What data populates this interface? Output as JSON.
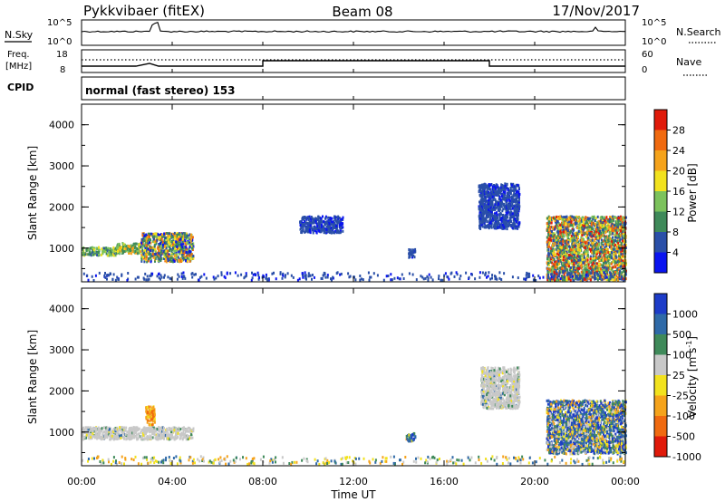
{
  "header": {
    "site": "Pykkvibaer (fitEX)",
    "beam": "Beam 08",
    "date": "17/Nov/2017"
  },
  "strip_labels": {
    "nsky": "N.Sky",
    "nsearch": "N.Search",
    "freq_line1": "Freq.",
    "freq_line2": "[MHz]",
    "nave": "Nave",
    "cpid": "CPID"
  },
  "strip_ticks": {
    "nsky_top": "10^5",
    "nsky_bottom": "10^0",
    "nsearch_top": "10^5",
    "nsearch_bottom": "10^0",
    "freq_top": "18",
    "freq_bottom": "8",
    "nave_top": "60",
    "nave_bottom": "0"
  },
  "cpid_text": "normal (fast stereo) 153",
  "x_axis": {
    "label": "Time UT",
    "ticks": [
      "00:00",
      "04:00",
      "08:00",
      "12:00",
      "16:00",
      "20:00",
      "00:00"
    ]
  },
  "chart_data": [
    {
      "type": "heatmap",
      "ylabel": "Slant Range [km]",
      "ylim": [
        180,
        4500
      ],
      "yticks": [
        "1000",
        "2000",
        "3000",
        "4000"
      ],
      "xlim_hours": [
        0,
        24
      ],
      "colorbar": {
        "label": "Power [dB]",
        "ticks": [
          "4",
          "8",
          "12",
          "16",
          "20",
          "24",
          "28"
        ],
        "range": [
          0,
          30
        ],
        "colors": [
          "#0a14f0",
          "#2a4fa8",
          "#3f8a5a",
          "#7cc25c",
          "#f2e21e",
          "#f5a31b",
          "#f06a10",
          "#e01a0a"
        ]
      },
      "regions": [
        {
          "t": [
            0.0,
            1.5
          ],
          "range": [
            850,
            1050
          ],
          "level": "mid"
        },
        {
          "t": [
            1.5,
            2.6
          ],
          "range": [
            900,
            1150
          ],
          "level": "mid-high"
        },
        {
          "t": [
            2.6,
            4.9
          ],
          "range": [
            700,
            1400
          ],
          "level": "mixed"
        },
        {
          "t": [
            9.6,
            11.5
          ],
          "range": [
            1400,
            1800
          ],
          "level": "low"
        },
        {
          "t": [
            14.4,
            14.7
          ],
          "range": [
            800,
            1000
          ],
          "level": "low"
        },
        {
          "t": [
            17.5,
            19.3
          ],
          "range": [
            1500,
            2600
          ],
          "level": "low"
        },
        {
          "t": [
            20.5,
            24.0
          ],
          "range": [
            200,
            1800
          ],
          "level": "high"
        }
      ]
    },
    {
      "type": "heatmap",
      "ylabel": "Slant Range [km]",
      "ylim": [
        180,
        4500
      ],
      "yticks": [
        "1000",
        "2000",
        "3000",
        "4000"
      ],
      "xlim_hours": [
        0,
        24
      ],
      "colorbar": {
        "label": "Velocity [m s^-1]",
        "ticks": [
          "1000",
          "500",
          "100",
          "25",
          "-25",
          "-100",
          "-500",
          "-1000"
        ],
        "colors": [
          "#1d3cc8",
          "#2f6aa8",
          "#3f8a5a",
          "#c8c8c8",
          "#f2e21e",
          "#f5a31b",
          "#f06a10",
          "#e01a0a"
        ]
      },
      "regions": [
        {
          "t": [
            0.0,
            4.9
          ],
          "range": [
            850,
            1150
          ],
          "level": "ground-scatter"
        },
        {
          "t": [
            2.8,
            3.2
          ],
          "range": [
            1200,
            1650
          ],
          "level": "negative"
        },
        {
          "t": [
            14.3,
            14.7
          ],
          "range": [
            800,
            1000
          ],
          "level": "positive"
        },
        {
          "t": [
            17.6,
            19.3
          ],
          "range": [
            1600,
            2600
          ],
          "level": "ground-scatter"
        },
        {
          "t": [
            20.5,
            24.0
          ],
          "range": [
            500,
            1800
          ],
          "level": "positive"
        }
      ]
    }
  ]
}
